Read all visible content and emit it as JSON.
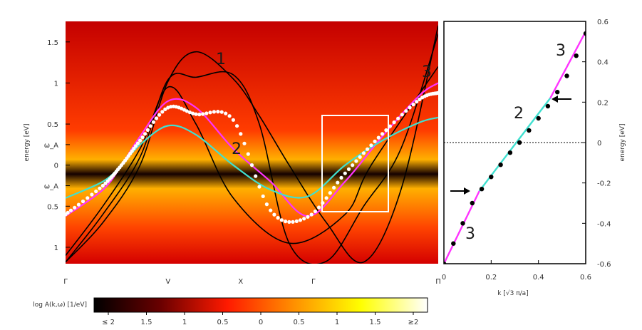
{
  "chart_data": [
    {
      "type": "heatmap",
      "ylabel": "energy [eV]",
      "x_ticks": [
        "Γ",
        "V",
        "X",
        "Γ",
        "Π"
      ],
      "y_ticks": [
        {
          "label": "1.5",
          "value": 1.5
        },
        {
          "label": "1",
          "value": 1.0
        },
        {
          "label": "0.5",
          "value": 0.5
        },
        {
          "label": "ω_A",
          "value": 0.25
        },
        {
          "label": "0",
          "value": 0.0
        },
        {
          "label": "ω_A",
          "value": -0.25
        },
        {
          "label": "0.5",
          "value": -0.5
        },
        {
          "label": "1",
          "value": -1.0
        }
      ],
      "ylim": [
        -1.2,
        1.75
      ],
      "band_labels": [
        "1",
        "2",
        "3"
      ],
      "colorbar": {
        "label": "log A(k,ω) [1/eV]",
        "ticks": [
          "≤ 2",
          "1.5",
          "1",
          "0.5",
          "0",
          "0.5",
          "1",
          "1.5",
          "≥2"
        ],
        "range": [
          -2,
          2
        ]
      },
      "series": [
        {
          "color": "#000000",
          "x": [
            0,
            0.1,
            0.2,
            0.275,
            0.35,
            0.45,
            0.52,
            0.6,
            0.7,
            0.8,
            0.9,
            1.0
          ],
          "y": [
            -1.18,
            -0.7,
            0.0,
            1.02,
            1.38,
            1.05,
            0.6,
            0.0,
            -0.7,
            -1.18,
            -0.3,
            1.7
          ]
        },
        {
          "color": "#000000",
          "x": [
            0,
            0.1,
            0.2,
            0.275,
            0.35,
            0.45,
            0.52,
            0.6,
            0.7,
            0.8,
            0.9,
            1.0
          ],
          "y": [
            -1.18,
            -0.6,
            0.1,
            1.04,
            1.07,
            1.1,
            0.5,
            -0.95,
            -1.17,
            -0.5,
            0.2,
            1.6
          ]
        },
        {
          "color": "#000000",
          "x": [
            0,
            0.1,
            0.2,
            0.275,
            0.35,
            0.45,
            0.6,
            0.75,
            0.82,
            1.0
          ],
          "y": [
            -1.1,
            -0.5,
            0.2,
            0.95,
            0.5,
            -0.4,
            -0.95,
            -0.6,
            0.0,
            1.2
          ]
        },
        {
          "color": "#ff33ff",
          "x": [
            0,
            0.1,
            0.15,
            0.2,
            0.275,
            0.35,
            0.45,
            0.55,
            0.65,
            0.75,
            0.85,
            0.95,
            1.0
          ],
          "y": [
            -0.62,
            -0.3,
            0.0,
            0.35,
            0.78,
            0.7,
            0.2,
            -0.2,
            -0.62,
            -0.2,
            0.35,
            0.85,
            1.0
          ]
        },
        {
          "color": "#40e0d0",
          "x": [
            0,
            0.1,
            0.15,
            0.2,
            0.275,
            0.35,
            0.45,
            0.55,
            0.65,
            0.75,
            0.85,
            0.95,
            1.0
          ],
          "y": [
            -0.4,
            -0.2,
            0.0,
            0.25,
            0.48,
            0.37,
            0.0,
            -0.3,
            -0.38,
            0.0,
            0.3,
            0.52,
            0.58
          ]
        },
        {
          "color": "#ffffff",
          "marker": "circle",
          "x": [
            0,
            0.1,
            0.15,
            0.2,
            0.275,
            0.35,
            0.45,
            0.55,
            0.65,
            0.75,
            0.85,
            0.95,
            1.0
          ],
          "y": [
            -0.6,
            -0.25,
            0.0,
            0.3,
            0.7,
            0.62,
            0.55,
            -0.55,
            -0.63,
            -0.1,
            0.38,
            0.8,
            0.88
          ]
        }
      ]
    },
    {
      "type": "line",
      "xlabel": "k   [√3 π/a]",
      "ylabel": "energy [eV]",
      "xlim": [
        0,
        0.6
      ],
      "ylim": [
        -0.6,
        0.6
      ],
      "x_ticks": [
        "0",
        "0.2",
        "0.4",
        "0.6"
      ],
      "y_ticks": [
        "-0.6",
        "-0.4",
        "-0.2",
        "0",
        "0.2",
        "0.4",
        "0.6"
      ],
      "band_labels": [
        "3",
        "2",
        "3"
      ],
      "series": [
        {
          "color": "#ff33ff",
          "x": [
            0.0,
            0.15
          ],
          "y": [
            -0.6,
            -0.24
          ]
        },
        {
          "color": "#40e0d0",
          "x": [
            0.15,
            0.45
          ],
          "y": [
            -0.24,
            0.22
          ]
        },
        {
          "color": "#ff33ff",
          "x": [
            0.45,
            0.6
          ],
          "y": [
            0.22,
            0.55
          ]
        },
        {
          "color": "#000000",
          "marker": "dot",
          "x": [
            0.0,
            0.04,
            0.08,
            0.12,
            0.16,
            0.2,
            0.24,
            0.28,
            0.32,
            0.36,
            0.4,
            0.44,
            0.48,
            0.52,
            0.56,
            0.6
          ],
          "y": [
            -0.6,
            -0.5,
            -0.4,
            -0.3,
            -0.23,
            -0.17,
            -0.11,
            -0.05,
            0.0,
            0.06,
            0.12,
            0.18,
            0.25,
            0.33,
            0.43,
            0.54
          ]
        }
      ]
    }
  ]
}
